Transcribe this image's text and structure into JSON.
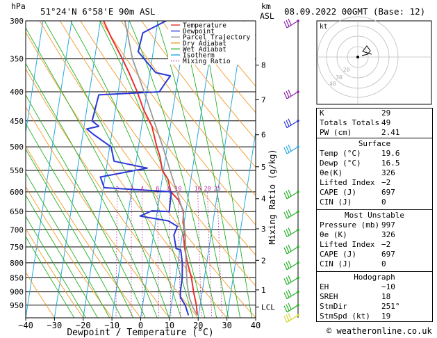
{
  "header": {
    "hpa_label": "hPa",
    "location": "51°24'N  6°58'E  90m  ASL",
    "km_label": "km",
    "asl_label": "ASL",
    "datetime": "08.09.2022  00GMT  (Base: 12)"
  },
  "legend": [
    {
      "label": "Temperature",
      "color": "#e8312f"
    },
    {
      "label": "Dewpoint",
      "color": "#2a36d8"
    },
    {
      "label": "Parcel Trajectory",
      "color": "#999999"
    },
    {
      "label": "Dry Adiabat",
      "color": "#f29a28"
    },
    {
      "label": "Wet Adiabat",
      "color": "#22b022"
    },
    {
      "label": "Isotherm",
      "color": "#25a8e0"
    },
    {
      "label": "Mixing Ratio",
      "color": "#c42aa8"
    }
  ],
  "hodograph": {
    "label": "kt",
    "ring_labels": [
      "20",
      "30",
      "40"
    ]
  },
  "chart_data": {
    "type": "line",
    "xlabel": "Dewpoint / Temperature (°C)",
    "ylabel_right": "Mixing Ratio (g/kg)",
    "xticks": [
      -40,
      -30,
      -20,
      -10,
      0,
      10,
      20,
      30,
      40
    ],
    "xlim": [
      -40,
      40
    ],
    "pressure_levels": [
      300,
      350,
      400,
      450,
      500,
      550,
      600,
      650,
      700,
      750,
      800,
      850,
      900,
      950
    ],
    "ylim": [
      300,
      1000
    ],
    "km_ticks": [
      {
        "label": "8",
        "p": 359
      },
      {
        "label": "7",
        "p": 413
      },
      {
        "label": "6",
        "p": 476
      },
      {
        "label": "5",
        "p": 542
      },
      {
        "label": "4",
        "p": 617
      },
      {
        "label": "3",
        "p": 697
      },
      {
        "label": "2",
        "p": 792
      },
      {
        "label": "1",
        "p": 893
      },
      {
        "label": "LCL",
        "p": 957
      }
    ],
    "mixing_ratio_labels": [
      "2",
      "3",
      "4",
      "6",
      "8",
      "10",
      "16",
      "20",
      "25"
    ],
    "mixing_ratio_values": [
      2,
      3,
      4,
      6,
      8,
      10,
      16,
      20,
      25
    ],
    "series": [
      {
        "name": "Temperature",
        "points": [
          [
            19.6,
            990
          ],
          [
            18.7,
            950
          ],
          [
            17,
            900
          ],
          [
            15.5,
            850
          ],
          [
            13.3,
            800
          ],
          [
            11.4,
            750
          ],
          [
            10.6,
            720
          ],
          [
            10.6,
            700
          ],
          [
            9.6,
            680
          ],
          [
            9.2,
            650
          ],
          [
            6.8,
            620
          ],
          [
            3.7,
            600
          ],
          [
            2,
            570
          ],
          [
            -0.4,
            550
          ],
          [
            -2,
            520
          ],
          [
            -3.6,
            500
          ],
          [
            -6.4,
            460
          ],
          [
            -10.2,
            430
          ],
          [
            -13.4,
            400
          ],
          [
            -17.3,
            370
          ],
          [
            -20.3,
            350
          ],
          [
            -25.5,
            320
          ],
          [
            -28.9,
            300
          ]
        ]
      },
      {
        "name": "Dewpoint",
        "points": [
          [
            16.5,
            990
          ],
          [
            14.8,
            950
          ],
          [
            12.7,
            920
          ],
          [
            12.4,
            900
          ],
          [
            12.3,
            850
          ],
          [
            11.5,
            800
          ],
          [
            10.3,
            760
          ],
          [
            8.6,
            755
          ],
          [
            7.1,
            715
          ],
          [
            7.8,
            690
          ],
          [
            4.4,
            675
          ],
          [
            -5.7,
            662
          ],
          [
            -1.9,
            648
          ],
          [
            4.2,
            650
          ],
          [
            3.9,
            600
          ],
          [
            -19.7,
            590
          ],
          [
            -21.6,
            565
          ],
          [
            -5.8,
            545
          ],
          [
            -17.7,
            530
          ],
          [
            -19.5,
            500
          ],
          [
            -26.4,
            475
          ],
          [
            -28.9,
            465
          ],
          [
            -24.9,
            460
          ],
          [
            -27.5,
            450
          ],
          [
            -26.6,
            405
          ],
          [
            -5.7,
            400
          ],
          [
            -4,
            385
          ],
          [
            -2.7,
            375
          ],
          [
            -8,
            370
          ],
          [
            -15.2,
            340
          ],
          [
            -15,
            330
          ],
          [
            -14.6,
            315
          ],
          [
            -7.2,
            300
          ]
        ]
      },
      {
        "name": "Parcel Trajectory",
        "points": [
          [
            19.6,
            990
          ],
          [
            17.5,
            957
          ],
          [
            15.8,
            920
          ],
          [
            14.3,
            870
          ],
          [
            12.8,
            800
          ],
          [
            11.2,
            720
          ],
          [
            9,
            650
          ],
          [
            5.8,
            600
          ],
          [
            3,
            560
          ],
          [
            -1.5,
            500
          ],
          [
            -6,
            450
          ],
          [
            -11,
            400
          ],
          [
            -16.8,
            350
          ],
          [
            -21.5,
            300
          ]
        ]
      }
    ],
    "wind_barbs": [
      {
        "p": 300,
        "color": "#8a1fa8"
      },
      {
        "p": 400,
        "color": "#8a1fa8"
      },
      {
        "p": 450,
        "color": "#2a36d8"
      },
      {
        "p": 500,
        "color": "#25a8e0"
      },
      {
        "p": 600,
        "color": "#22b022"
      },
      {
        "p": 650,
        "color": "#22b022"
      },
      {
        "p": 700,
        "color": "#22b022"
      },
      {
        "p": 750,
        "color": "#22b022"
      },
      {
        "p": 800,
        "color": "#22b022"
      },
      {
        "p": 850,
        "color": "#22b022"
      },
      {
        "p": 900,
        "color": "#22b022"
      },
      {
        "p": 950,
        "color": "#22b022"
      },
      {
        "p": 990,
        "color": "#d4d428"
      }
    ]
  },
  "indices": {
    "rows": [
      {
        "label": "K",
        "value": "29"
      },
      {
        "label": "Totals Totals",
        "value": "49"
      },
      {
        "label": "PW (cm)",
        "value": "2.41"
      }
    ],
    "surface": {
      "title": "Surface",
      "rows": [
        {
          "label": "Temp (°C)",
          "value": "19.6"
        },
        {
          "label": "Dewp (°C)",
          "value": "16.5"
        },
        {
          "label": "θe(K)",
          "value": "326"
        },
        {
          "label": "Lifted Index",
          "value": "−2"
        },
        {
          "label": "CAPE (J)",
          "value": "697"
        },
        {
          "label": "CIN (J)",
          "value": "0"
        }
      ]
    },
    "most_unstable": {
      "title": "Most Unstable",
      "rows": [
        {
          "label": "Pressure (mb)",
          "value": "997"
        },
        {
          "label": "θe (K)",
          "value": "326"
        },
        {
          "label": "Lifted Index",
          "value": "−2"
        },
        {
          "label": "CAPE (J)",
          "value": "697"
        },
        {
          "label": "CIN (J)",
          "value": "0"
        }
      ]
    },
    "hodograph": {
      "title": "Hodograph",
      "rows": [
        {
          "label": "EH",
          "value": "−10"
        },
        {
          "label": "SREH",
          "value": "18"
        },
        {
          "label": "StmDir",
          "value": "251°"
        },
        {
          "label": "StmSpd (kt)",
          "value": "19"
        }
      ]
    }
  },
  "footer": {
    "credit": "© weatheronline.co.uk"
  }
}
